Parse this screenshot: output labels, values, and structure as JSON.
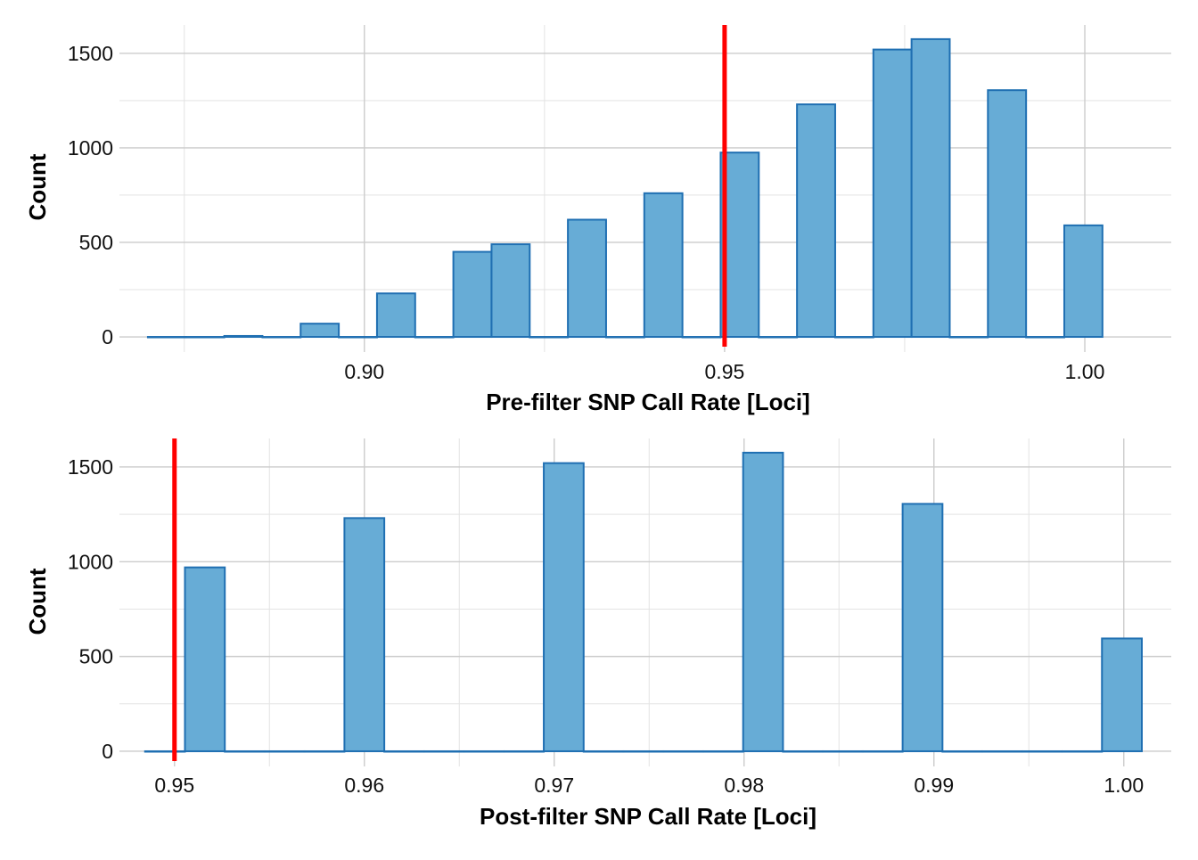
{
  "chart_data": [
    {
      "type": "bar",
      "xlabel": "Pre-filter SNP Call Rate [Loci]",
      "ylabel": "Count",
      "xlim": [
        0.866,
        1.012
      ],
      "ylim": [
        -80,
        1650
      ],
      "x_ticks": [
        "0.90",
        "0.95",
        "1.00"
      ],
      "x_tick_values": [
        0.9,
        0.95,
        1.0
      ],
      "x_minor_values": [
        0.875,
        0.925,
        0.975
      ],
      "y_ticks": [
        "0",
        "500",
        "1000",
        "1500"
      ],
      "y_tick_values": [
        0,
        500,
        1000,
        1500
      ],
      "y_minor_values": [
        250,
        750,
        1250
      ],
      "bin_width": 0.0053,
      "bins": [
        {
          "x": 0.8726,
          "count": 0
        },
        {
          "x": 0.8779,
          "count": 0
        },
        {
          "x": 0.8832,
          "count": 5
        },
        {
          "x": 0.8885,
          "count": 0
        },
        {
          "x": 0.8938,
          "count": 70
        },
        {
          "x": 0.8991,
          "count": 0
        },
        {
          "x": 0.9044,
          "count": 230
        },
        {
          "x": 0.9097,
          "count": 0
        },
        {
          "x": 0.915,
          "count": 450
        },
        {
          "x": 0.9203,
          "count": 490
        },
        {
          "x": 0.9256,
          "count": 0
        },
        {
          "x": 0.9309,
          "count": 620
        },
        {
          "x": 0.9362,
          "count": 0
        },
        {
          "x": 0.9415,
          "count": 760
        },
        {
          "x": 0.9468,
          "count": 0
        },
        {
          "x": 0.9521,
          "count": 975
        },
        {
          "x": 0.9574,
          "count": 0
        },
        {
          "x": 0.9627,
          "count": 1230
        },
        {
          "x": 0.968,
          "count": 0
        },
        {
          "x": 0.9733,
          "count": 1520
        },
        {
          "x": 0.9786,
          "count": 1575
        },
        {
          "x": 0.9839,
          "count": 0
        },
        {
          "x": 0.9892,
          "count": 1305
        },
        {
          "x": 0.9945,
          "count": 0
        },
        {
          "x": 0.9998,
          "count": 590
        }
      ],
      "threshold": 0.95,
      "grid": true
    },
    {
      "type": "bar",
      "xlabel": "Post-filter SNP Call Rate [Loci]",
      "ylabel": "Count",
      "xlim": [
        0.9471,
        1.0025
      ],
      "ylim": [
        -80,
        1650
      ],
      "x_ticks": [
        "0.95",
        "0.96",
        "0.97",
        "0.98",
        "0.99",
        "1.00"
      ],
      "x_tick_values": [
        0.95,
        0.96,
        0.97,
        0.98,
        0.99,
        1.0
      ],
      "x_minor_values": [
        0.955,
        0.965,
        0.975,
        0.985,
        0.995
      ],
      "y_ticks": [
        "0",
        "500",
        "1000",
        "1500"
      ],
      "y_tick_values": [
        0,
        500,
        1000,
        1500
      ],
      "y_minor_values": [
        250,
        750,
        1250
      ],
      "bin_width": 0.0021,
      "bins": [
        {
          "x": 0.9495,
          "count": 0
        },
        {
          "x": 0.9516,
          "count": 970
        },
        {
          "x": 0.9537,
          "count": 0
        },
        {
          "x": 0.9558,
          "count": 0
        },
        {
          "x": 0.9579,
          "count": 0
        },
        {
          "x": 0.96,
          "count": 1230
        },
        {
          "x": 0.9621,
          "count": 0
        },
        {
          "x": 0.9642,
          "count": 0
        },
        {
          "x": 0.9663,
          "count": 0
        },
        {
          "x": 0.9684,
          "count": 0
        },
        {
          "x": 0.9705,
          "count": 1520
        },
        {
          "x": 0.9726,
          "count": 0
        },
        {
          "x": 0.9747,
          "count": 0
        },
        {
          "x": 0.9768,
          "count": 0
        },
        {
          "x": 0.9789,
          "count": 0
        },
        {
          "x": 0.981,
          "count": 1575
        },
        {
          "x": 0.9831,
          "count": 0
        },
        {
          "x": 0.9852,
          "count": 0
        },
        {
          "x": 0.9873,
          "count": 0
        },
        {
          "x": 0.9894,
          "count": 1305
        },
        {
          "x": 0.9915,
          "count": 0
        },
        {
          "x": 0.9936,
          "count": 0
        },
        {
          "x": 0.9957,
          "count": 0
        },
        {
          "x": 0.9978,
          "count": 0
        },
        {
          "x": 0.9999,
          "count": 595
        }
      ],
      "threshold": 0.95,
      "grid": true
    }
  ],
  "colors": {
    "bar_fill": "#67acd6",
    "bar_stroke": "#1f6fb2",
    "threshold_line": "#ff0000",
    "major_grid": "#cccccc",
    "minor_grid": "#e3e3e3"
  }
}
